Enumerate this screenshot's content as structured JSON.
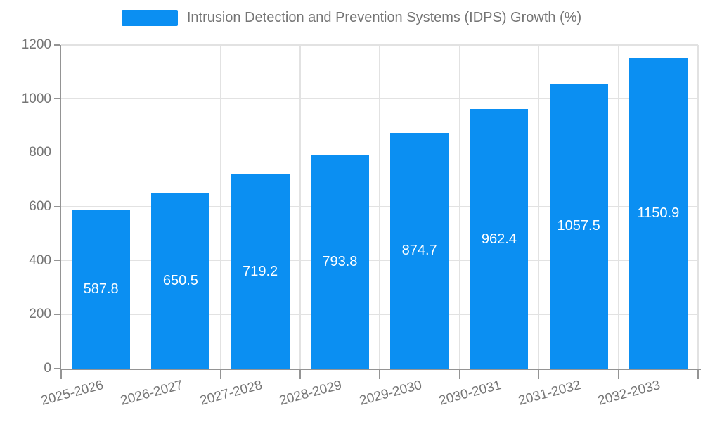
{
  "legend": {
    "label": "Intrusion Detection and Prevention Systems (IDPS) Growth (%)"
  },
  "colors": {
    "bar": "#0b8ff2",
    "grid": "#e2e2e2",
    "axis": "#949494",
    "tick_text": "#757575",
    "legend_text": "#757575",
    "bar_label_text": "#ffffff",
    "background": "#ffffff"
  },
  "chart_data": {
    "type": "bar",
    "title": "Intrusion Detection and Prevention Systems (IDPS) Growth (%)",
    "categories": [
      "2025-2026",
      "2026-2027",
      "2027-2028",
      "2028-2029",
      "2029-2030",
      "2030-2031",
      "2031-2032",
      "2032-2033"
    ],
    "series": [
      {
        "name": "Intrusion Detection and Prevention Systems (IDPS) Growth (%)",
        "values": [
          587.8,
          650.5,
          719.2,
          793.8,
          874.7,
          962.4,
          1057.5,
          1150.9
        ]
      }
    ],
    "xlabel": "",
    "ylabel": "",
    "ylim": [
      0,
      1200
    ],
    "y_ticks": [
      0,
      200,
      400,
      600,
      800,
      1000,
      1200
    ],
    "grid": true,
    "legend_position": "top-center",
    "bar_label_position": "inside-center",
    "x_label_rotation_deg": -15
  }
}
